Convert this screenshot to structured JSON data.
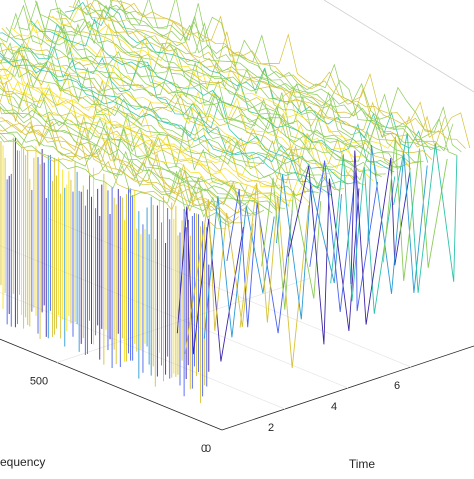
{
  "chart_data": {
    "type": "waterfall-3d",
    "title": "",
    "xlabel": "Time",
    "ylabel": "requency",
    "zlabel": "",
    "x_ticks": [
      "0",
      "2",
      "4",
      "6"
    ],
    "y_ticks": [
      "0",
      "500"
    ],
    "xlim": [
      0,
      8
    ],
    "ylim": [
      0,
      1100
    ],
    "grid": true,
    "colormap": [
      "#3e26a8",
      "#4a63f0",
      "#2e9bd6",
      "#2ec4a8",
      "#8ccc5a",
      "#d8c236",
      "#f9e11e"
    ],
    "series_note": ""
  }
}
